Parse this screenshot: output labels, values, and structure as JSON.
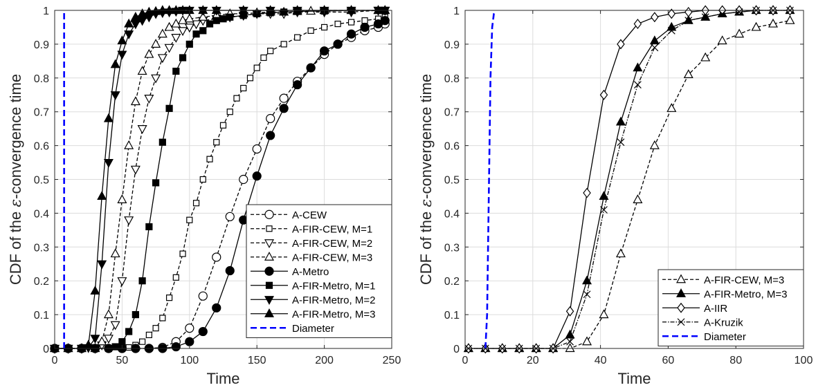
{
  "chart_data": [
    {
      "type": "line",
      "xlabel": "Time",
      "ylabel": "CDF of the ε-convergence time",
      "ylabel_parts": [
        "CDF of the ",
        "ε",
        "-convergence time"
      ],
      "xlim": [
        0,
        250
      ],
      "ylim": [
        0,
        1
      ],
      "xticks": [
        0,
        50,
        100,
        150,
        200,
        250
      ],
      "yticks": [
        0,
        0.1,
        0.2,
        0.3,
        0.4,
        0.5,
        0.6,
        0.7,
        0.8,
        0.9,
        1
      ],
      "grid": true,
      "legend_position": "bottom-right",
      "series": [
        {
          "name": "A-CEW",
          "style": "dashed",
          "marker": "circle-open",
          "color": "#000000",
          "x": [
            0,
            10,
            20,
            30,
            40,
            50,
            60,
            70,
            80,
            90,
            100,
            110,
            120,
            130,
            140,
            150,
            160,
            170,
            180,
            190,
            200,
            210,
            220,
            230,
            240,
            245
          ],
          "y": [
            0,
            0,
            0,
            0,
            0,
            0,
            0,
            0,
            0.003,
            0.02,
            0.06,
            0.155,
            0.27,
            0.39,
            0.5,
            0.59,
            0.68,
            0.74,
            0.79,
            0.83,
            0.87,
            0.9,
            0.92,
            0.94,
            0.95,
            0.96
          ]
        },
        {
          "name": "A-FIR-CEW, M=1",
          "style": "dashed",
          "marker": "square-open",
          "color": "#000000",
          "x": [
            0,
            10,
            20,
            30,
            40,
            50,
            55,
            60,
            65,
            70,
            75,
            80,
            85,
            90,
            95,
            100,
            105,
            110,
            115,
            120,
            125,
            130,
            135,
            140,
            145,
            150,
            155,
            160,
            170,
            180,
            190,
            200,
            210,
            220,
            230,
            240,
            245
          ],
          "y": [
            0,
            0,
            0,
            0,
            0,
            0,
            0.003,
            0.01,
            0.02,
            0.04,
            0.06,
            0.09,
            0.15,
            0.21,
            0.28,
            0.38,
            0.43,
            0.5,
            0.56,
            0.61,
            0.66,
            0.7,
            0.74,
            0.77,
            0.8,
            0.83,
            0.86,
            0.88,
            0.9,
            0.92,
            0.94,
            0.95,
            0.96,
            0.965,
            0.97,
            0.975,
            0.98
          ]
        },
        {
          "name": "A-FIR-CEW, M=2",
          "style": "dashed",
          "marker": "triangle-down-open",
          "color": "#000000",
          "x": [
            0,
            10,
            20,
            30,
            35,
            40,
            45,
            50,
            55,
            60,
            65,
            70,
            75,
            80,
            85,
            90,
            95,
            100,
            105,
            110,
            120,
            130,
            140,
            150,
            160,
            170,
            180,
            200,
            220,
            240,
            245
          ],
          "y": [
            0,
            0,
            0,
            0,
            0.01,
            0.03,
            0.07,
            0.2,
            0.38,
            0.53,
            0.65,
            0.74,
            0.8,
            0.86,
            0.89,
            0.92,
            0.94,
            0.95,
            0.96,
            0.97,
            0.975,
            0.98,
            0.985,
            0.99,
            0.99,
            0.99,
            0.995,
            0.995,
            0.995,
            1,
            1
          ]
        },
        {
          "name": "A-FIR-CEW, M=3",
          "style": "dashed",
          "marker": "triangle-up-open",
          "color": "#000000",
          "x": [
            0,
            10,
            20,
            30,
            35,
            40,
            45,
            50,
            55,
            60,
            65,
            70,
            75,
            80,
            85,
            90,
            95,
            100,
            110,
            120,
            130,
            140,
            150,
            160,
            170,
            180,
            190,
            200,
            220,
            240,
            245
          ],
          "y": [
            0,
            0,
            0,
            0,
            0.02,
            0.1,
            0.28,
            0.44,
            0.6,
            0.73,
            0.82,
            0.87,
            0.9,
            0.93,
            0.95,
            0.96,
            0.97,
            0.975,
            0.98,
            0.985,
            0.99,
            0.99,
            0.993,
            0.995,
            0.995,
            0.997,
            0.998,
            1,
            1,
            1,
            1
          ]
        },
        {
          "name": "A-Metro",
          "style": "solid",
          "marker": "circle-filled",
          "color": "#000000",
          "x": [
            0,
            10,
            20,
            30,
            40,
            50,
            60,
            70,
            80,
            90,
            100,
            110,
            120,
            130,
            140,
            150,
            160,
            170,
            180,
            190,
            200,
            210,
            220,
            230,
            240,
            245
          ],
          "y": [
            0,
            0,
            0,
            0,
            0,
            0,
            0,
            0,
            0,
            0.005,
            0.02,
            0.05,
            0.12,
            0.23,
            0.38,
            0.51,
            0.63,
            0.71,
            0.78,
            0.83,
            0.88,
            0.9,
            0.93,
            0.95,
            0.96,
            0.97
          ]
        },
        {
          "name": "A-FIR-Metro, M=1",
          "style": "solid",
          "marker": "square-filled",
          "color": "#000000",
          "x": [
            0,
            10,
            20,
            30,
            40,
            45,
            50,
            55,
            60,
            65,
            70,
            75,
            80,
            85,
            90,
            95,
            100,
            105,
            110,
            115,
            120,
            125,
            130,
            140,
            150,
            160,
            170,
            180,
            200,
            220,
            240,
            245
          ],
          "y": [
            0,
            0,
            0,
            0,
            0,
            0.005,
            0.02,
            0.05,
            0.1,
            0.2,
            0.36,
            0.49,
            0.61,
            0.71,
            0.82,
            0.86,
            0.9,
            0.93,
            0.94,
            0.96,
            0.97,
            0.975,
            0.98,
            0.985,
            0.99,
            0.993,
            0.995,
            0.997,
            0.998,
            1,
            1,
            1
          ]
        },
        {
          "name": "A-FIR-Metro, M=2",
          "style": "solid",
          "marker": "triangle-down-filled",
          "color": "#000000",
          "x": [
            0,
            10,
            20,
            25,
            30,
            35,
            40,
            45,
            50,
            55,
            60,
            65,
            70,
            75,
            80,
            85,
            90,
            95,
            100,
            110,
            120,
            140,
            160,
            180,
            200,
            220,
            240,
            245
          ],
          "y": [
            0,
            0,
            0,
            0.002,
            0.03,
            0.25,
            0.55,
            0.75,
            0.87,
            0.93,
            0.96,
            0.97,
            0.98,
            0.99,
            0.993,
            0.995,
            0.997,
            1,
            1,
            1,
            1,
            1,
            1,
            1,
            1,
            1,
            1,
            1
          ]
        },
        {
          "name": "A-FIR-Metro, M=3",
          "style": "solid",
          "marker": "triangle-up-filled",
          "color": "#000000",
          "x": [
            0,
            10,
            20,
            25,
            30,
            35,
            40,
            45,
            50,
            55,
            60,
            65,
            70,
            75,
            80,
            85,
            90,
            95,
            100,
            110,
            120,
            140,
            160,
            180,
            200,
            220,
            240,
            245
          ],
          "y": [
            0,
            0,
            0,
            0.01,
            0.17,
            0.45,
            0.68,
            0.84,
            0.91,
            0.96,
            0.98,
            0.99,
            0.995,
            0.997,
            1,
            1,
            1,
            1,
            1,
            1,
            1,
            1,
            1,
            1,
            1,
            1,
            1,
            1
          ]
        },
        {
          "name": "Diameter",
          "style": "thick-dashed",
          "marker": "none",
          "color": "#0000ff",
          "x": [
            7,
            7
          ],
          "y": [
            0,
            1
          ]
        }
      ]
    },
    {
      "type": "line",
      "xlabel": "Time",
      "ylabel": "CDF of the ε-convergence time",
      "ylabel_parts": [
        "CDF of the ",
        "ε",
        "-convergence time"
      ],
      "xlim": [
        0,
        100
      ],
      "ylim": [
        0,
        1
      ],
      "xticks": [
        0,
        20,
        40,
        60,
        80,
        100
      ],
      "yticks": [
        0,
        0.1,
        0.2,
        0.3,
        0.4,
        0.5,
        0.6,
        0.7,
        0.8,
        0.9,
        1
      ],
      "grid": true,
      "legend_position": "bottom-right",
      "series": [
        {
          "name": "A-FIR-CEW, M=3",
          "style": "dashed",
          "marker": "triangle-up-open",
          "color": "#000000",
          "x": [
            1,
            6,
            11,
            16,
            21,
            26,
            31,
            36,
            41,
            46,
            51,
            56,
            61,
            66,
            71,
            76,
            81,
            86,
            91,
            96
          ],
          "y": [
            0,
            0,
            0,
            0,
            0,
            0,
            0,
            0.02,
            0.1,
            0.28,
            0.44,
            0.6,
            0.71,
            0.81,
            0.86,
            0.91,
            0.93,
            0.95,
            0.96,
            0.97
          ]
        },
        {
          "name": "A-FIR-Metro, M=3",
          "style": "solid",
          "marker": "triangle-up-filled",
          "color": "#000000",
          "x": [
            1,
            6,
            11,
            16,
            21,
            26,
            31,
            36,
            41,
            46,
            51,
            56,
            61,
            66,
            71,
            76,
            81,
            86,
            91,
            96
          ],
          "y": [
            0,
            0,
            0,
            0,
            0,
            0,
            0.04,
            0.2,
            0.45,
            0.67,
            0.83,
            0.91,
            0.95,
            0.97,
            0.98,
            0.99,
            0.995,
            1,
            1,
            1
          ]
        },
        {
          "name": "A-IIR",
          "style": "solid",
          "marker": "diamond-open",
          "color": "#000000",
          "x": [
            1,
            6,
            11,
            16,
            21,
            26,
            31,
            36,
            41,
            46,
            51,
            56,
            61,
            66,
            71,
            76,
            81,
            86,
            91,
            96
          ],
          "y": [
            0,
            0,
            0,
            0,
            0,
            0,
            0.11,
            0.46,
            0.75,
            0.9,
            0.96,
            0.98,
            0.99,
            0.995,
            1,
            1,
            1,
            1,
            1,
            1
          ]
        },
        {
          "name": "A-Kruzik",
          "style": "dashdot",
          "marker": "x",
          "color": "#000000",
          "x": [
            1,
            6,
            11,
            16,
            21,
            26,
            31,
            36,
            41,
            46,
            51,
            56,
            61,
            66,
            71,
            76,
            81,
            86,
            91,
            96
          ],
          "y": [
            0,
            0,
            0,
            0,
            0,
            0,
            0.02,
            0.16,
            0.41,
            0.61,
            0.78,
            0.89,
            0.94,
            0.97,
            0.98,
            0.99,
            0.995,
            1,
            1,
            1
          ]
        },
        {
          "name": "Diameter",
          "style": "thick-dashed",
          "marker": "none",
          "color": "#0000ff",
          "x": [
            6,
            6.5,
            7,
            7.5,
            8,
            8.5,
            9
          ],
          "y": [
            0,
            0.1,
            0.45,
            0.8,
            0.95,
            0.99,
            1
          ]
        }
      ]
    }
  ]
}
